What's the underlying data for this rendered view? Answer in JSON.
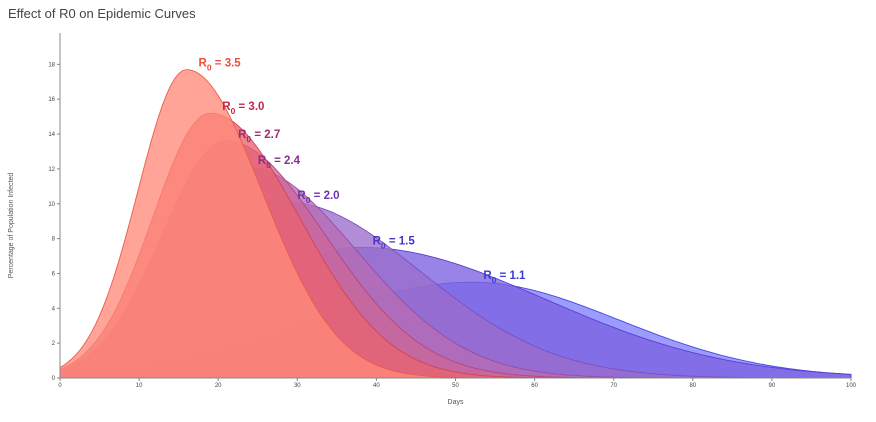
{
  "chart_data": {
    "type": "area",
    "title": "Effect of R0 on Epidemic Curves",
    "xlabel": "Days",
    "ylabel": "Percentage of Population Infected",
    "xlim": [
      0,
      100
    ],
    "ylim": [
      0,
      19.8
    ],
    "x_ticks": [
      0,
      10,
      20,
      30,
      40,
      50,
      60,
      70,
      80,
      90,
      100
    ],
    "y_ticks": [
      0,
      2,
      4,
      6,
      8,
      10,
      12,
      14,
      16,
      18
    ],
    "grid": false,
    "legend": "none",
    "series": [
      {
        "label_prefix": "R",
        "label_sub": "0",
        "label_suffix": " = 1.1",
        "r0": 1.1,
        "peak_day": 52,
        "peak_value": 5.5,
        "start_value": 0.2,
        "end_value": 0.2,
        "fill": "#8080ff",
        "stroke": "#4646e6",
        "label_color": "#3a3ad6"
      },
      {
        "label_prefix": "R",
        "label_sub": "0",
        "label_suffix": " = 1.5",
        "r0": 1.5,
        "peak_day": 38,
        "peak_value": 7.5,
        "start_value": 0.3,
        "end_value": 0.0,
        "fill": "#7b62df",
        "stroke": "#5a3fd0",
        "label_color": "#4b34c8"
      },
      {
        "label_prefix": "R",
        "label_sub": "0",
        "label_suffix": " = 2.0",
        "r0": 2.0,
        "peak_day": 28.5,
        "peak_value": 10.1,
        "start_value": 0.35,
        "end_value": 0.0,
        "fill": "#9b6dcc",
        "stroke": "#7d4fc0",
        "label_color": "#7232b0"
      },
      {
        "label_prefix": "R",
        "label_sub": "0",
        "label_suffix": " = 2.4",
        "r0": 2.4,
        "peak_day": 23.5,
        "peak_value": 12.1,
        "start_value": 0.4,
        "end_value": 0.0,
        "fill": "#b66bb3",
        "stroke": "#9a4aa3",
        "label_color": "#8a2e8f"
      },
      {
        "label_prefix": "R",
        "label_sub": "0",
        "label_suffix": " = 2.7",
        "r0": 2.7,
        "peak_day": 21,
        "peak_value": 13.6,
        "start_value": 0.45,
        "end_value": 0.0,
        "fill": "#cc6699",
        "stroke": "#b24680",
        "label_color": "#a12c6a"
      },
      {
        "label_prefix": "R",
        "label_sub": "0",
        "label_suffix": " = 3.0",
        "r0": 3.0,
        "peak_day": 19,
        "peak_value": 15.2,
        "start_value": 0.5,
        "end_value": 0.0,
        "fill": "#e86370",
        "stroke": "#d04457",
        "label_color": "#c2284a"
      },
      {
        "label_prefix": "R",
        "label_sub": "0",
        "label_suffix": " = 3.5",
        "r0": 3.5,
        "peak_day": 16,
        "peak_value": 17.7,
        "start_value": 0.6,
        "end_value": 0.0,
        "fill": "#ff8a7a",
        "stroke": "#ee5a4a",
        "label_color": "#f04e37"
      }
    ]
  }
}
